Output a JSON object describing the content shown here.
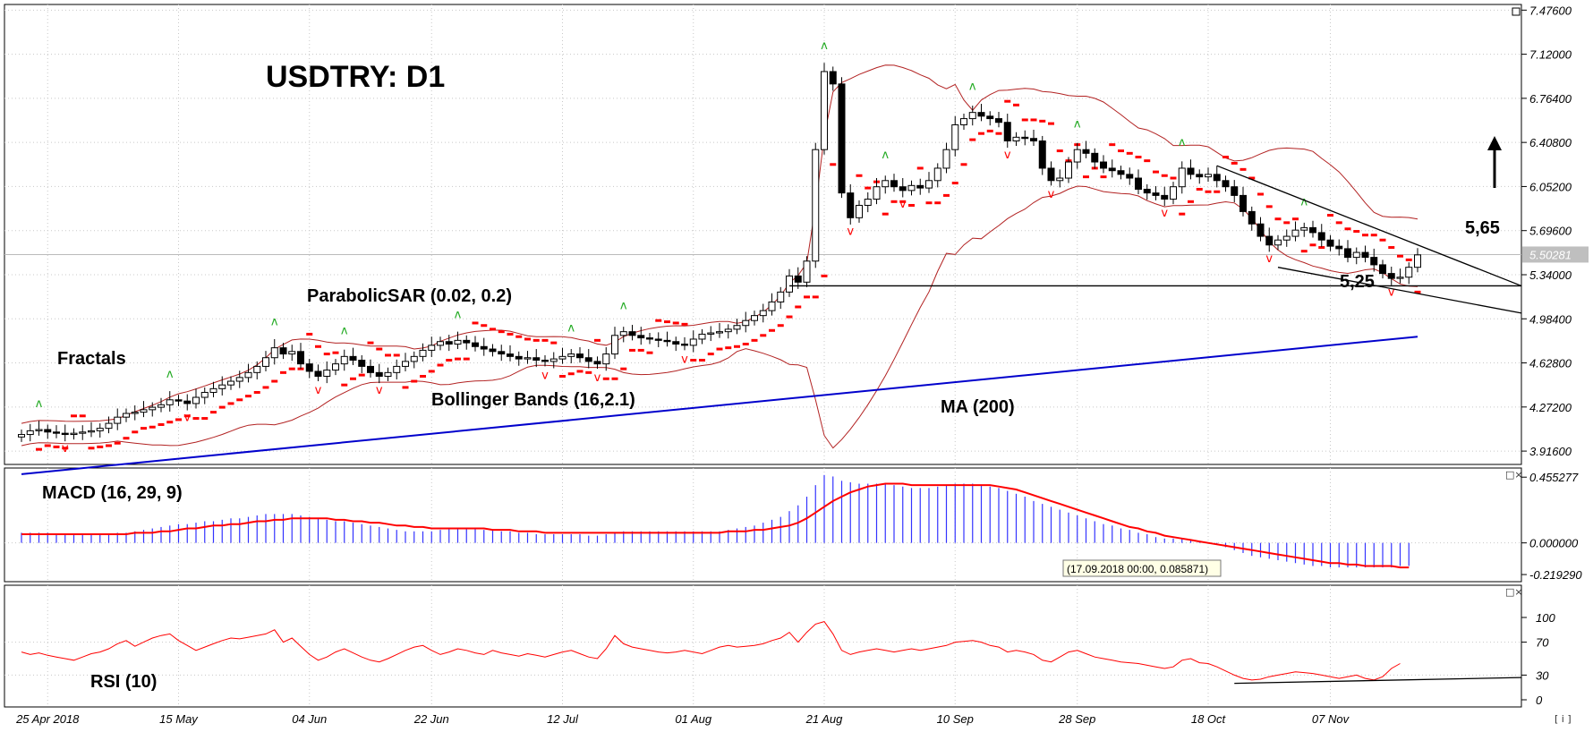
{
  "title": "USDTRY: D1",
  "price_axis": {
    "ticks": [
      "7.47600",
      "7.12000",
      "6.76400",
      "6.40800",
      "6.05200",
      "5.69600",
      "5.34000",
      "4.98400",
      "4.62800",
      "4.27200",
      "3.91600"
    ],
    "current": "5.50281"
  },
  "macd_axis": {
    "ticks": [
      "0.455277",
      "0.000000",
      "-0.219290"
    ]
  },
  "rsi_axis": {
    "ticks": [
      "100",
      "70",
      "30",
      "0"
    ]
  },
  "date_labels": [
    "25 Apr 2018",
    "15 May",
    "04 Jun",
    "22 Jun",
    "12 Jul",
    "01 Aug",
    "21 Aug",
    "10 Sep",
    "28 Sep",
    "18 Oct",
    "07 Nov"
  ],
  "annotations": {
    "fractals": "Fractals",
    "parabolic_sar": "ParabolicSAR (0.02, 0.2)",
    "bollinger": "Bollinger Bands (16,2.1)",
    "ma": "MA (200)",
    "level_565": "5,65",
    "level_525": "5,25",
    "macd": "MACD (16, 29, 9)",
    "rsi": "RSI (10)"
  },
  "tooltip": "(17.09.2018 00:00, 0.085871)",
  "controls": {
    "close": "□×",
    "scroll": "[ i ]"
  },
  "colors": {
    "candle_up": "#ffffff",
    "candle_down": "#000000",
    "sar": "#ff0000",
    "bollinger": "#b22222",
    "ma": "#0000cc",
    "macd_hist": "#3333ff",
    "macd_signal": "#ff0000",
    "rsi": "#ff0000",
    "fractal_up": "#22aa22",
    "fractal_down": "#ff0000"
  },
  "chart_data": [
    {
      "type": "candlestick",
      "symbol": "USDTRY",
      "timeframe": "D1",
      "ylim": [
        3.83,
        7.5
      ],
      "horizontal_levels": [
        5.25,
        5.65
      ],
      "close": [
        4.05,
        4.08,
        4.09,
        4.07,
        4.06,
        4.05,
        4.06,
        4.07,
        4.08,
        4.1,
        4.14,
        4.19,
        4.22,
        4.23,
        4.25,
        4.27,
        4.29,
        4.33,
        4.32,
        4.3,
        4.35,
        4.39,
        4.42,
        4.45,
        4.48,
        4.51,
        4.55,
        4.6,
        4.67,
        4.75,
        4.7,
        4.72,
        4.62,
        4.56,
        4.52,
        4.57,
        4.62,
        4.68,
        4.65,
        4.6,
        4.55,
        4.52,
        4.55,
        4.6,
        4.64,
        4.68,
        4.73,
        4.77,
        4.8,
        4.78,
        4.81,
        4.79,
        4.76,
        4.74,
        4.72,
        4.7,
        4.68,
        4.66,
        4.67,
        4.65,
        4.64,
        4.66,
        4.68,
        4.7,
        4.67,
        4.64,
        4.62,
        4.7,
        4.85,
        4.88,
        4.85,
        4.83,
        4.82,
        4.81,
        4.8,
        4.78,
        4.77,
        4.82,
        4.86,
        4.87,
        4.88,
        4.9,
        4.93,
        4.97,
        5.01,
        5.05,
        5.12,
        5.2,
        5.33,
        5.28,
        5.45,
        6.35,
        6.98,
        6.88,
        6.0,
        5.8,
        5.9,
        5.95,
        6.05,
        6.1,
        6.05,
        6.02,
        6.06,
        6.04,
        6.1,
        6.2,
        6.35,
        6.55,
        6.6,
        6.65,
        6.62,
        6.6,
        6.57,
        6.42,
        6.45,
        6.44,
        6.42,
        6.2,
        6.1,
        6.12,
        6.25,
        6.35,
        6.32,
        6.25,
        6.2,
        6.18,
        6.15,
        6.12,
        6.03,
        6.0,
        5.98,
        5.95,
        6.05,
        6.2,
        6.15,
        6.13,
        6.15,
        6.1,
        6.05,
        5.98,
        5.85,
        5.75,
        5.65,
        5.58,
        5.62,
        5.65,
        5.7,
        5.72,
        5.68,
        5.62,
        5.57,
        5.55,
        5.48,
        5.52,
        5.48,
        5.42,
        5.35,
        5.31,
        5.32,
        5.4,
        5.5
      ]
    },
    {
      "type": "line",
      "name": "MA (200)",
      "start": 3.73,
      "end": 4.84
    },
    {
      "type": "bar",
      "name": "MACD (16, 29, 9)",
      "ylim": [
        -0.25,
        0.5
      ],
      "histogram": [
        0.07,
        0.07,
        0.07,
        0.07,
        0.06,
        0.06,
        0.06,
        0.06,
        0.06,
        0.06,
        0.06,
        0.07,
        0.07,
        0.08,
        0.09,
        0.1,
        0.11,
        0.12,
        0.13,
        0.13,
        0.14,
        0.15,
        0.15,
        0.16,
        0.17,
        0.17,
        0.18,
        0.19,
        0.2,
        0.2,
        0.2,
        0.2,
        0.19,
        0.18,
        0.17,
        0.16,
        0.15,
        0.15,
        0.14,
        0.13,
        0.12,
        0.11,
        0.1,
        0.09,
        0.08,
        0.08,
        0.08,
        0.08,
        0.09,
        0.1,
        0.1,
        0.1,
        0.1,
        0.09,
        0.09,
        0.08,
        0.08,
        0.07,
        0.07,
        0.06,
        0.06,
        0.06,
        0.06,
        0.06,
        0.06,
        0.05,
        0.05,
        0.06,
        0.07,
        0.08,
        0.08,
        0.08,
        0.08,
        0.08,
        0.08,
        0.08,
        0.08,
        0.08,
        0.08,
        0.08,
        0.08,
        0.09,
        0.1,
        0.11,
        0.12,
        0.14,
        0.16,
        0.18,
        0.22,
        0.26,
        0.32,
        0.4,
        0.47,
        0.46,
        0.43,
        0.42,
        0.41,
        0.41,
        0.41,
        0.41,
        0.4,
        0.39,
        0.38,
        0.38,
        0.38,
        0.39,
        0.4,
        0.41,
        0.41,
        0.41,
        0.4,
        0.39,
        0.38,
        0.36,
        0.34,
        0.32,
        0.29,
        0.27,
        0.25,
        0.23,
        0.21,
        0.19,
        0.17,
        0.15,
        0.13,
        0.12,
        0.1,
        0.09,
        0.07,
        0.06,
        0.04,
        0.03,
        0.03,
        0.03,
        0.02,
        0.01,
        0.0,
        -0.01,
        -0.03,
        -0.05,
        -0.07,
        -0.09,
        -0.1,
        -0.11,
        -0.12,
        -0.13,
        -0.14,
        -0.15,
        -0.16,
        -0.16,
        -0.17,
        -0.17,
        -0.17,
        -0.17,
        -0.17,
        -0.17,
        -0.17,
        -0.17,
        -0.16,
        -0.16
      ],
      "signal": [
        0.06,
        0.06,
        0.06,
        0.06,
        0.06,
        0.06,
        0.06,
        0.06,
        0.06,
        0.06,
        0.06,
        0.06,
        0.06,
        0.07,
        0.07,
        0.07,
        0.08,
        0.08,
        0.09,
        0.1,
        0.1,
        0.11,
        0.12,
        0.12,
        0.13,
        0.13,
        0.14,
        0.15,
        0.15,
        0.16,
        0.16,
        0.17,
        0.17,
        0.17,
        0.17,
        0.17,
        0.16,
        0.16,
        0.15,
        0.15,
        0.14,
        0.14,
        0.13,
        0.12,
        0.12,
        0.11,
        0.11,
        0.1,
        0.1,
        0.1,
        0.1,
        0.1,
        0.1,
        0.1,
        0.09,
        0.09,
        0.09,
        0.08,
        0.08,
        0.08,
        0.07,
        0.07,
        0.07,
        0.07,
        0.07,
        0.07,
        0.07,
        0.07,
        0.07,
        0.07,
        0.07,
        0.07,
        0.07,
        0.07,
        0.07,
        0.07,
        0.07,
        0.07,
        0.07,
        0.07,
        0.07,
        0.08,
        0.08,
        0.08,
        0.09,
        0.09,
        0.1,
        0.11,
        0.12,
        0.14,
        0.17,
        0.21,
        0.25,
        0.29,
        0.32,
        0.35,
        0.37,
        0.39,
        0.4,
        0.41,
        0.41,
        0.41,
        0.4,
        0.4,
        0.4,
        0.4,
        0.4,
        0.4,
        0.4,
        0.4,
        0.4,
        0.4,
        0.39,
        0.38,
        0.37,
        0.35,
        0.33,
        0.31,
        0.29,
        0.27,
        0.25,
        0.23,
        0.21,
        0.19,
        0.17,
        0.15,
        0.13,
        0.11,
        0.1,
        0.08,
        0.07,
        0.05,
        0.04,
        0.03,
        0.02,
        0.01,
        0.0,
        -0.01,
        -0.02,
        -0.03,
        -0.04,
        -0.05,
        -0.06,
        -0.07,
        -0.08,
        -0.09,
        -0.1,
        -0.11,
        -0.12,
        -0.13,
        -0.14,
        -0.14,
        -0.15,
        -0.15,
        -0.16,
        -0.16,
        -0.16,
        -0.16,
        -0.17,
        -0.17
      ]
    },
    {
      "type": "line",
      "name": "RSI (10)",
      "ylim": [
        0,
        100
      ],
      "levels": [
        70,
        30
      ],
      "values": [
        58,
        55,
        57,
        54,
        52,
        50,
        48,
        52,
        56,
        58,
        62,
        68,
        72,
        65,
        70,
        75,
        78,
        80,
        72,
        66,
        60,
        64,
        68,
        72,
        75,
        74,
        76,
        78,
        80,
        85,
        70,
        75,
        65,
        55,
        48,
        52,
        58,
        62,
        57,
        52,
        48,
        46,
        50,
        55,
        60,
        64,
        66,
        60,
        55,
        58,
        62,
        60,
        57,
        55,
        60,
        57,
        55,
        53,
        56,
        54,
        52,
        55,
        58,
        60,
        56,
        52,
        50,
        62,
        78,
        68,
        64,
        62,
        60,
        58,
        57,
        58,
        60,
        58,
        56,
        60,
        64,
        66,
        64,
        65,
        66,
        68,
        72,
        75,
        82,
        70,
        82,
        92,
        95,
        80,
        60,
        55,
        58,
        60,
        62,
        60,
        58,
        60,
        62,
        60,
        62,
        64,
        66,
        70,
        71,
        72,
        70,
        66,
        64,
        58,
        60,
        58,
        55,
        48,
        46,
        52,
        58,
        60,
        56,
        52,
        50,
        48,
        46,
        45,
        44,
        42,
        40,
        38,
        40,
        48,
        50,
        45,
        44,
        40,
        35,
        30,
        26,
        24,
        25,
        28,
        30,
        32,
        34,
        33,
        32,
        30,
        28,
        26,
        28,
        30,
        26,
        24,
        28,
        38,
        44
      ]
    }
  ]
}
